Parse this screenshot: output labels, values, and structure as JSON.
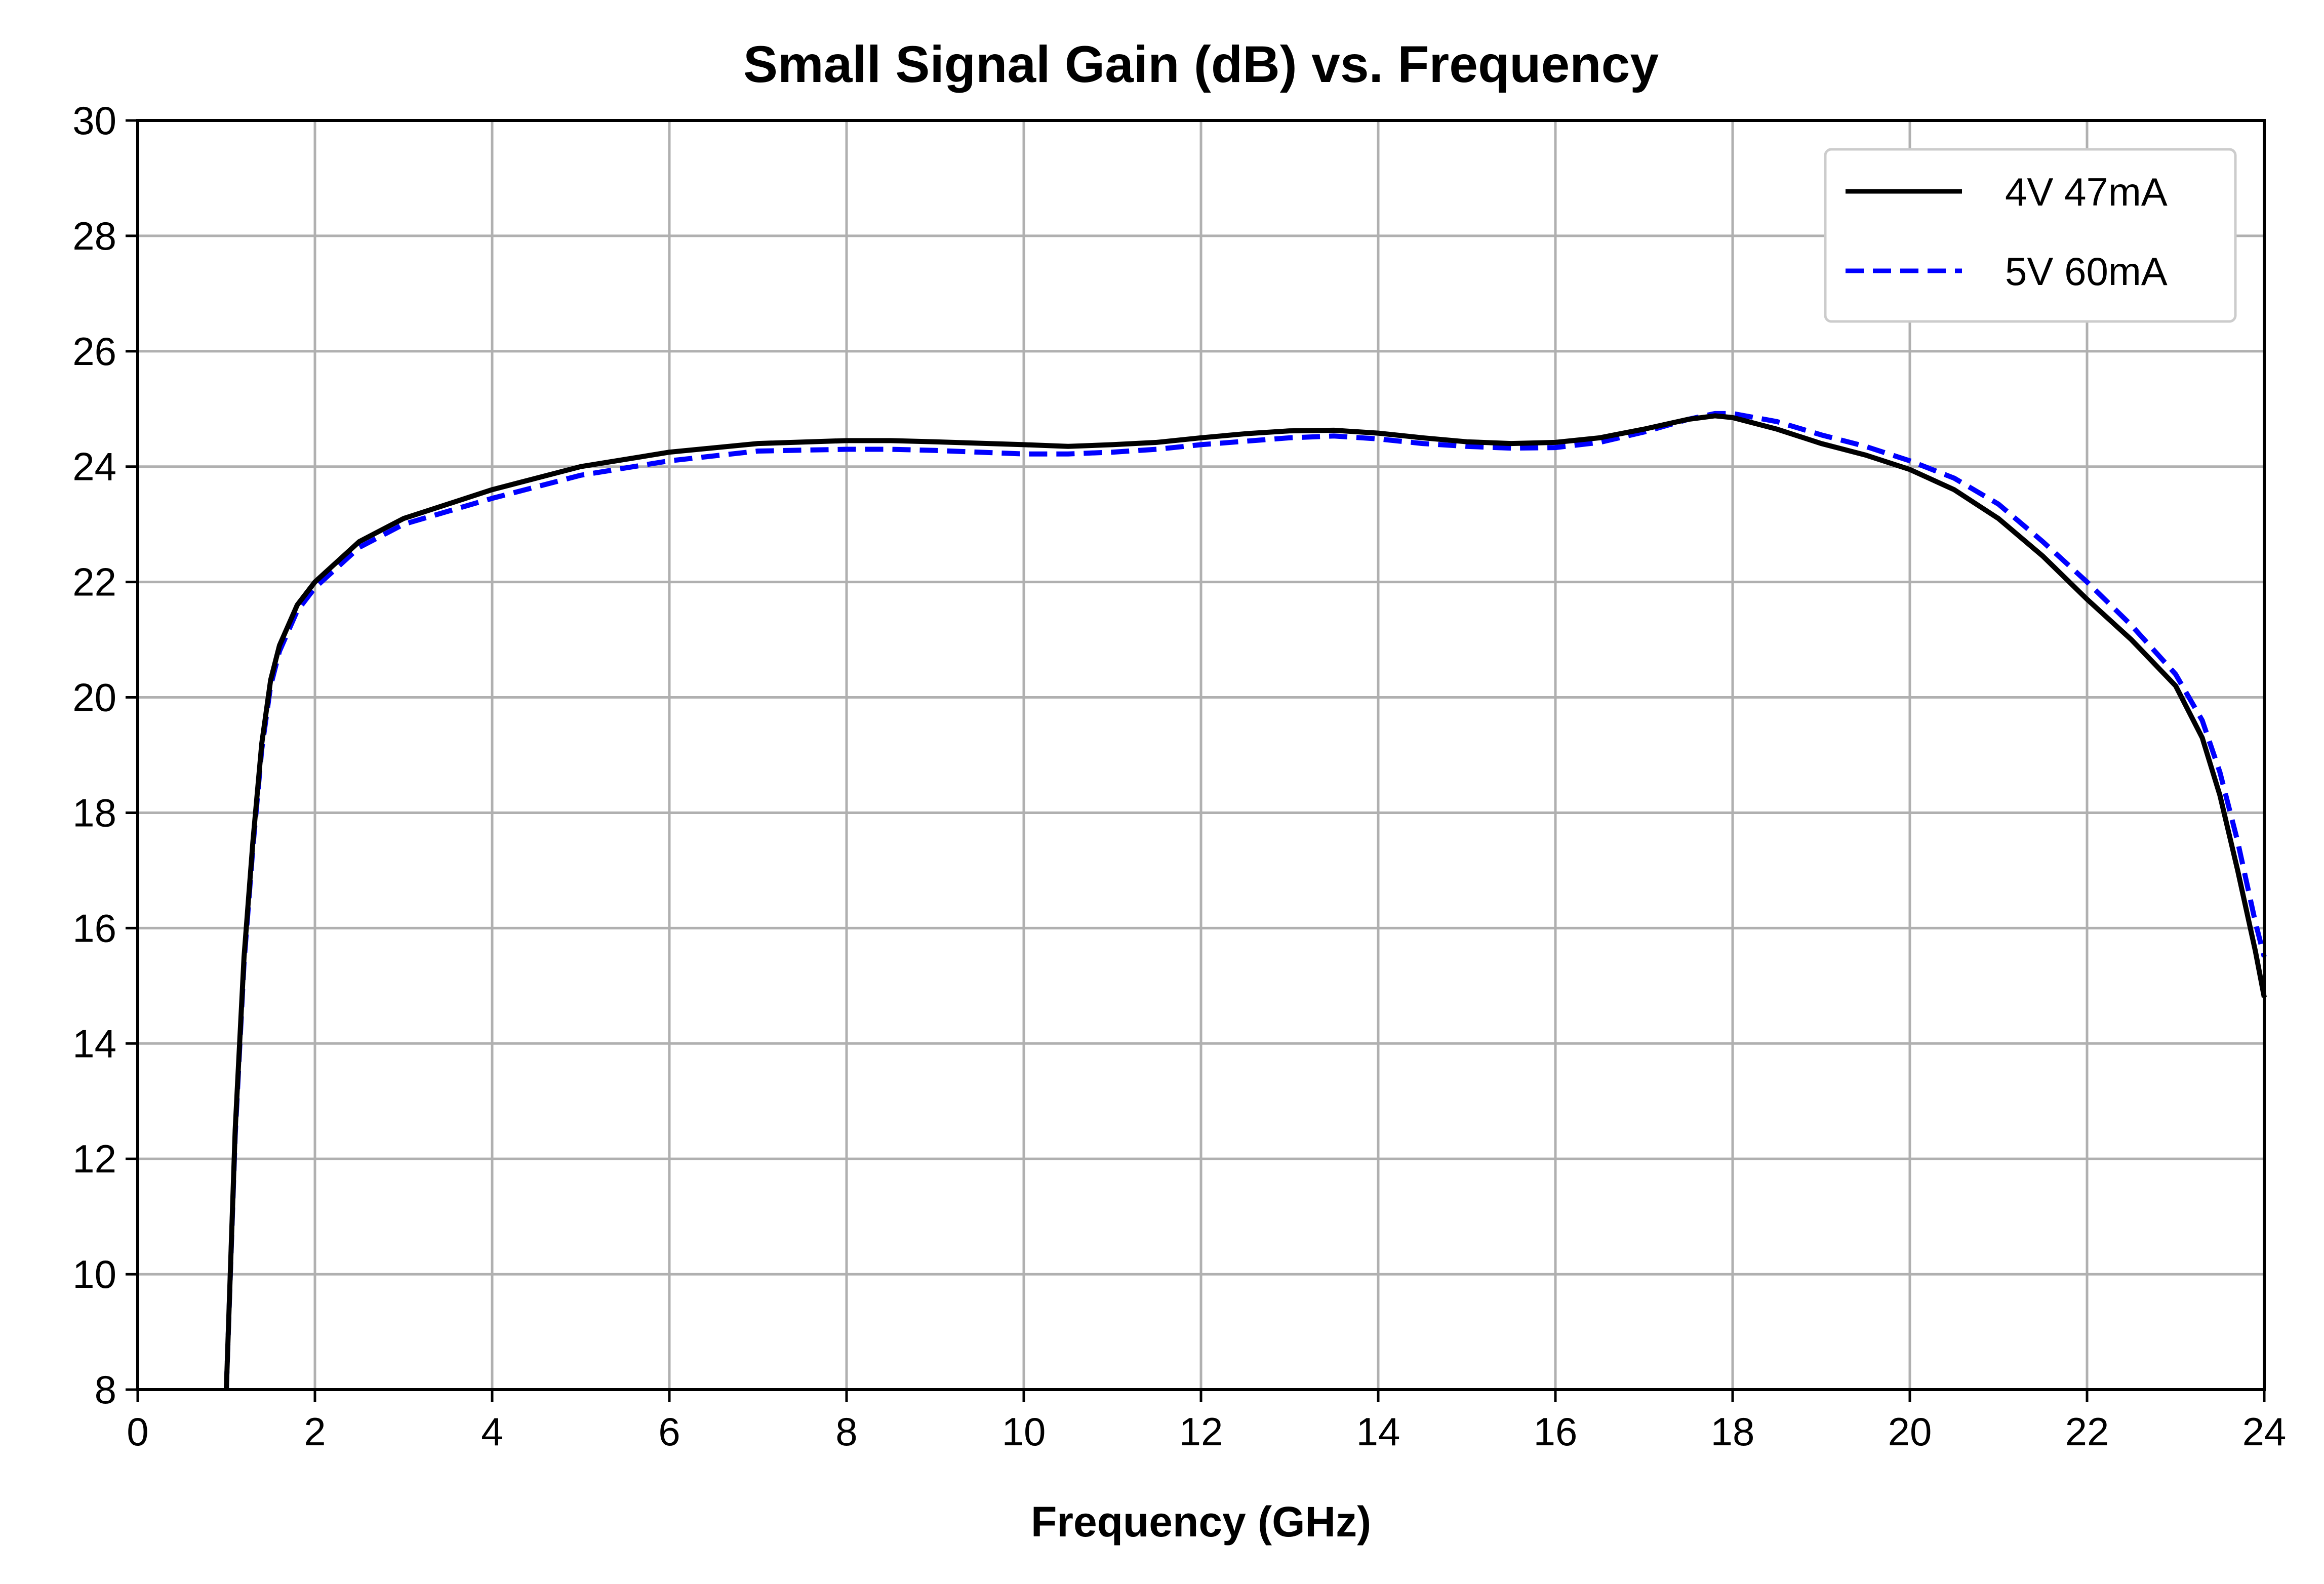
{
  "chart_data": {
    "type": "line",
    "title": "Small Signal Gain (dB) vs. Frequency",
    "xlabel": "Frequency (GHz)",
    "ylabel": "",
    "xlim": [
      0,
      24
    ],
    "ylim": [
      8,
      30
    ],
    "xticks": [
      0,
      2,
      4,
      6,
      8,
      10,
      12,
      14,
      16,
      18,
      20,
      22,
      24
    ],
    "yticks": [
      8,
      10,
      12,
      14,
      16,
      18,
      20,
      22,
      24,
      26,
      28,
      30
    ],
    "grid": true,
    "legend_position": "top-right",
    "series": [
      {
        "name": "4V 47mA",
        "color": "#000000",
        "style": "solid",
        "x": [
          1.0,
          1.1,
          1.2,
          1.3,
          1.4,
          1.5,
          1.6,
          1.8,
          2.0,
          2.5,
          3.0,
          4.0,
          5.0,
          6.0,
          7.0,
          8.0,
          8.5,
          9.0,
          10.0,
          10.5,
          11.0,
          11.5,
          12.0,
          12.5,
          13.0,
          13.5,
          14.0,
          14.5,
          15.0,
          15.5,
          16.0,
          16.5,
          17.0,
          17.5,
          17.8,
          18.0,
          18.5,
          19.0,
          19.5,
          20.0,
          20.5,
          21.0,
          21.5,
          22.0,
          22.5,
          23.0,
          23.3,
          23.5,
          23.7,
          23.9,
          24.0
        ],
        "y": [
          8.0,
          12.5,
          15.5,
          17.5,
          19.2,
          20.3,
          20.9,
          21.6,
          22.0,
          22.7,
          23.1,
          23.6,
          24.0,
          24.25,
          24.4,
          24.45,
          24.45,
          24.43,
          24.38,
          24.35,
          24.38,
          24.42,
          24.5,
          24.57,
          24.62,
          24.63,
          24.58,
          24.5,
          24.43,
          24.4,
          24.42,
          24.5,
          24.65,
          24.82,
          24.88,
          24.85,
          24.65,
          24.4,
          24.2,
          23.95,
          23.6,
          23.1,
          22.45,
          21.7,
          21.0,
          20.2,
          19.3,
          18.3,
          17.0,
          15.6,
          14.8
        ]
      },
      {
        "name": "5V 60mA",
        "color": "#0000ff",
        "style": "dashed",
        "x": [
          1.0,
          1.1,
          1.2,
          1.3,
          1.4,
          1.5,
          1.6,
          1.8,
          2.0,
          2.5,
          3.0,
          4.0,
          5.0,
          6.0,
          7.0,
          8.0,
          8.5,
          9.0,
          10.0,
          10.5,
          11.0,
          11.5,
          12.0,
          12.5,
          13.0,
          13.5,
          14.0,
          14.5,
          15.0,
          15.5,
          16.0,
          16.5,
          17.0,
          17.5,
          17.8,
          18.0,
          18.5,
          19.0,
          19.5,
          20.0,
          20.5,
          21.0,
          21.5,
          22.0,
          22.5,
          23.0,
          23.3,
          23.5,
          23.7,
          23.9,
          24.0
        ],
        "y": [
          8.0,
          12.4,
          15.4,
          17.4,
          19.1,
          20.2,
          20.8,
          21.5,
          21.9,
          22.6,
          23.0,
          23.45,
          23.85,
          24.1,
          24.27,
          24.3,
          24.3,
          24.28,
          24.22,
          24.22,
          24.25,
          24.3,
          24.38,
          24.44,
          24.5,
          24.53,
          24.48,
          24.4,
          24.35,
          24.32,
          24.33,
          24.42,
          24.6,
          24.82,
          24.92,
          24.92,
          24.78,
          24.55,
          24.35,
          24.1,
          23.8,
          23.35,
          22.7,
          22.0,
          21.25,
          20.4,
          19.6,
          18.7,
          17.5,
          16.1,
          15.5
        ]
      }
    ]
  }
}
